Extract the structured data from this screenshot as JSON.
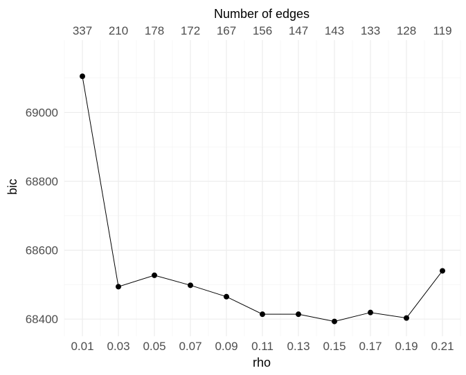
{
  "chart_data": {
    "type": "line",
    "xlabel": "rho",
    "ylabel": "bic",
    "secondary_xlabel": "Number of edges",
    "x": [
      0.01,
      0.03,
      0.05,
      0.07,
      0.09,
      0.11,
      0.13,
      0.15,
      0.17,
      0.19,
      0.21
    ],
    "x_tick_labels": [
      "0.01",
      "0.03",
      "0.05",
      "0.07",
      "0.09",
      "0.11",
      "0.13",
      "0.15",
      "0.17",
      "0.19",
      "0.21"
    ],
    "top_tick_labels": [
      "337",
      "210",
      "178",
      "172",
      "167",
      "156",
      "147",
      "143",
      "133",
      "128",
      "119"
    ],
    "y": [
      69105,
      68494,
      68527,
      68498,
      68465,
      68414,
      68414,
      68393,
      68419,
      68403,
      68540
    ],
    "y_ticks": [
      68400,
      68600,
      68800,
      69000
    ],
    "y_tick_labels": [
      "68400",
      "68600",
      "68800",
      "69000"
    ],
    "xlim": [
      0.0,
      0.22
    ],
    "ylim": [
      68350,
      69210
    ],
    "grid": true,
    "line_color": "#000000",
    "point_color": "#000000"
  }
}
